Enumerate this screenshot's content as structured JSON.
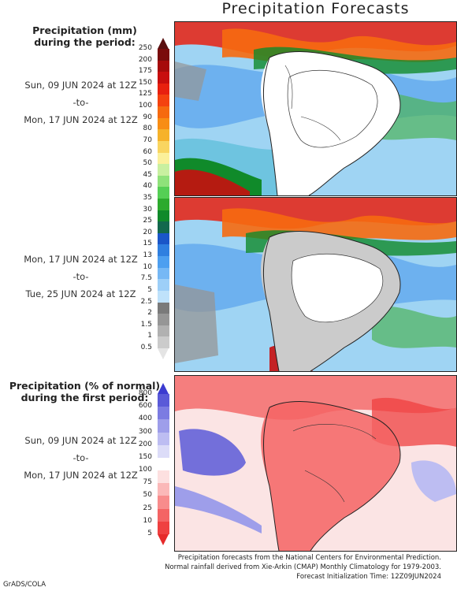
{
  "title": "Precipitation Forecasts",
  "section1": {
    "heading_line1": "Precipitation (mm)",
    "heading_line2": "during the period:",
    "period1": {
      "start": "Sun, 09 JUN 2024 at 12Z",
      "sep": "-to-",
      "end": "Mon, 17 JUN 2024 at 12Z"
    },
    "period2": {
      "start": "Mon, 17 JUN 2024 at 12Z",
      "sep": "-to-",
      "end": "Tue, 25 JUN 2024 at 12Z"
    },
    "scale": {
      "ticks": [
        "250",
        "200",
        "175",
        "150",
        "125",
        "100",
        "90",
        "80",
        "70",
        "60",
        "50",
        "45",
        "40",
        "35",
        "30",
        "25",
        "20",
        "15",
        "13",
        "10",
        "7.5",
        "5",
        "2.5",
        "2",
        "1.5",
        "1",
        "0.5"
      ],
      "colors": [
        "#5a1010",
        "#7a0c0c",
        "#a60b0b",
        "#c80e0e",
        "#e8200f",
        "#f4420f",
        "#f66a0f",
        "#f88d14",
        "#f6b22a",
        "#f9d560",
        "#fbf09a",
        "#c9f0a0",
        "#8fe27a",
        "#55cf55",
        "#2daa2d",
        "#108a2a",
        "#13684d",
        "#1a56c8",
        "#2f7fe0",
        "#4d9ff0",
        "#76b8f5",
        "#9dcff8",
        "#bfe2fb",
        "#7a7a7a",
        "#969696",
        "#b1b1b1",
        "#cbcbcb",
        "#e4e4e4"
      ]
    }
  },
  "section2": {
    "heading_line1": "Precipitation (% of normal)",
    "heading_line2": "during the first period:",
    "period": {
      "start": "Sun, 09 JUN 2024 at 12Z",
      "sep": "-to-",
      "end": "Mon, 17 JUN 2024 at 12Z"
    },
    "scale": {
      "ticks": [
        "800",
        "600",
        "400",
        "300",
        "200",
        "150",
        "100",
        "75",
        "50",
        "25",
        "10",
        "5"
      ],
      "colors": [
        "#3b3bd0",
        "#5a5ad8",
        "#7c7ce2",
        "#9e9eea",
        "#bdbdf2",
        "#dcdcf8",
        "#ffffff",
        "#fde0e0",
        "#fbb8b8",
        "#f88c8c",
        "#f46464",
        "#ef4040",
        "#e62a2a"
      ]
    }
  },
  "footer": {
    "line1": "Precipitation forecasts from the National Centers for Environmental Prediction.",
    "line2": "Normal rainfall derived from Xie-Arkin (CMAP) Monthly Climatology for 1979-2003.",
    "line3": "Forecast Initialization Time: 12Z09JUN2024"
  },
  "credit": "GrADS/COLA"
}
